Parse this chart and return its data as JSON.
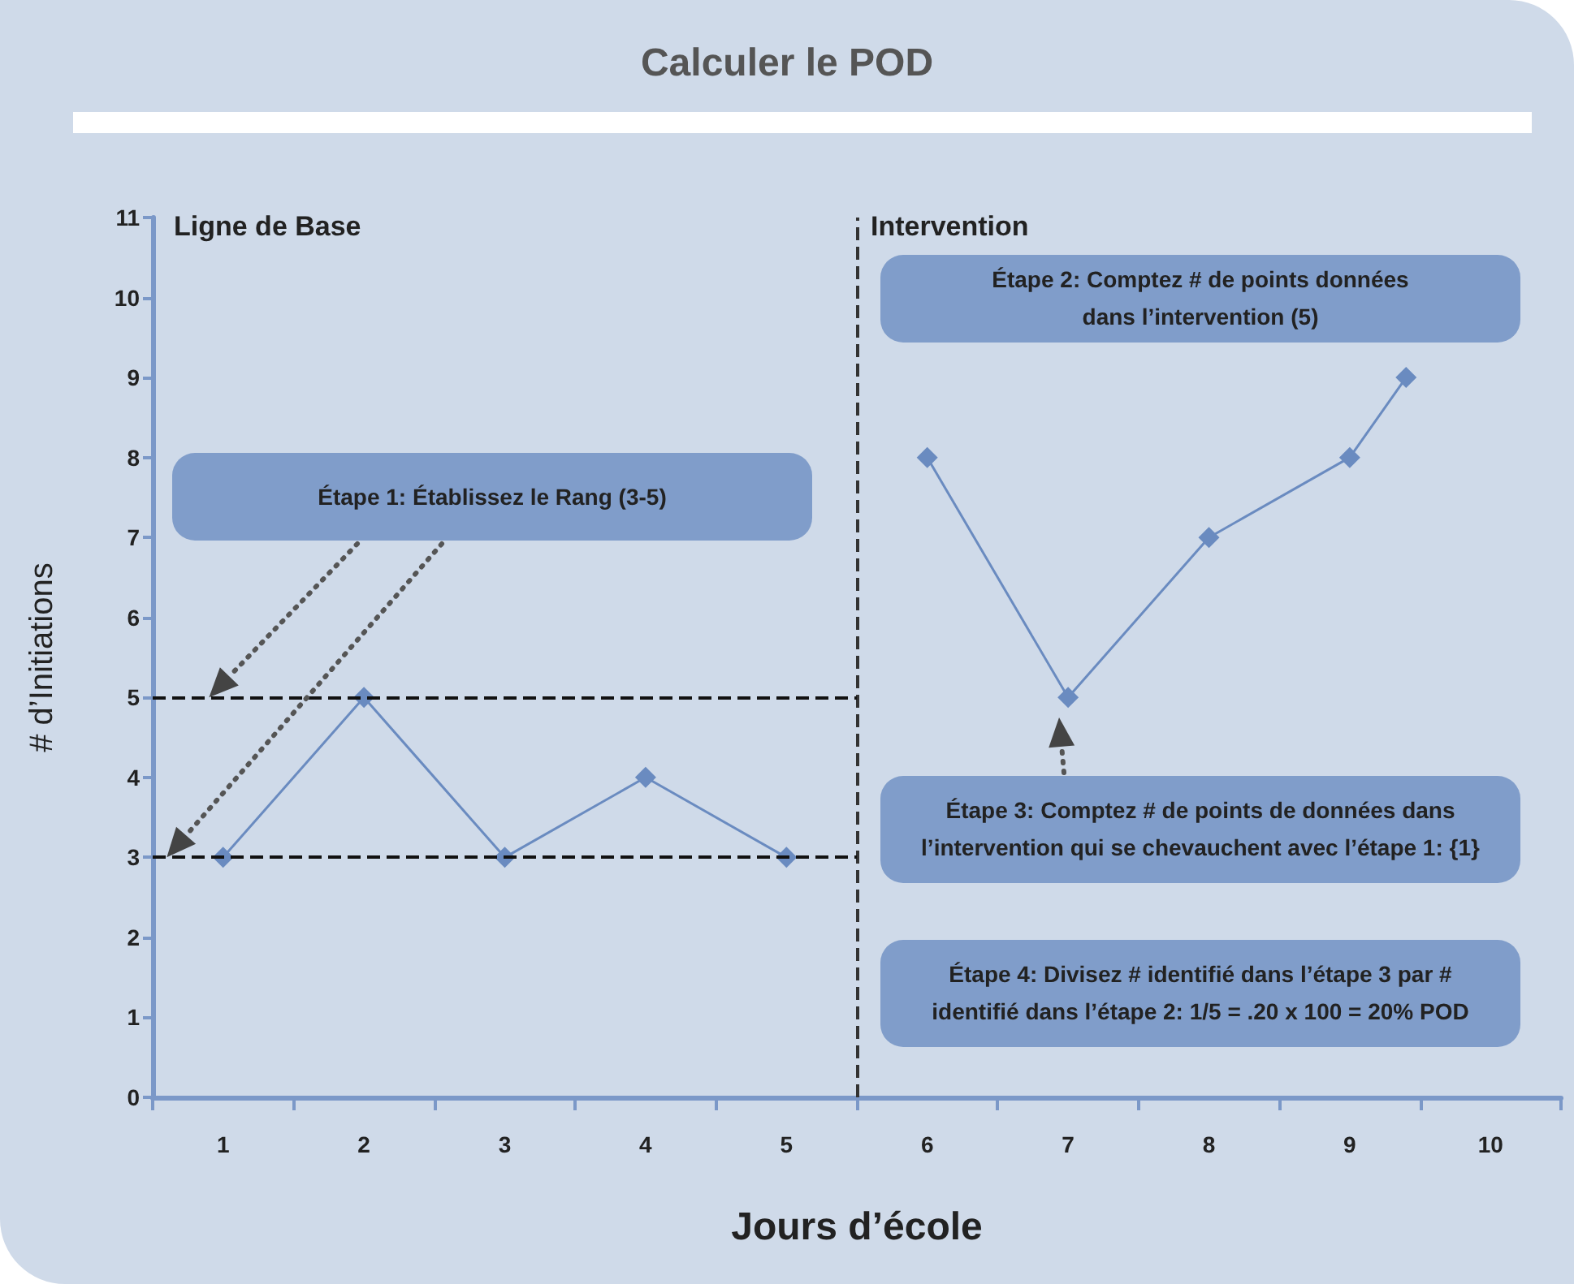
{
  "chart_data": {
    "type": "line",
    "title": "Calculer le POD",
    "xlabel": "Jours d’école",
    "ylabel": "# d’Initiations",
    "series": [
      {
        "color": "#6a8bc0",
        "x": [
          1,
          2,
          3,
          4,
          5
        ],
        "values": [
          3,
          5,
          3,
          4,
          3
        ]
      },
      {
        "color": "#6a8bc0",
        "x": [
          6,
          7,
          8,
          9,
          9.4
        ],
        "values": [
          8,
          5,
          7,
          8,
          9
        ]
      }
    ],
    "xlim": [
      0.5,
      10.5
    ],
    "xticks": [
      {
        "value": 0.5,
        "label": null
      },
      1,
      {
        "value": 1.5,
        "label": null
      },
      2,
      {
        "value": 2.5,
        "label": null
      },
      3,
      {
        "value": 3.5,
        "label": null
      },
      4,
      {
        "value": 4.5,
        "label": null
      },
      5,
      {
        "value": 5.5,
        "label": null
      },
      6,
      {
        "value": 6.5,
        "label": null
      },
      7,
      {
        "value": 7.5,
        "label": null
      },
      8,
      {
        "value": 8.5,
        "label": null
      },
      9,
      {
        "value": 9.5,
        "label": null
      },
      10,
      {
        "value": 10.5,
        "label": null
      }
    ],
    "ylim": [
      0,
      11
    ],
    "yticks": [
      0,
      1,
      2,
      3,
      4,
      5,
      6,
      7,
      8,
      9,
      10,
      11
    ],
    "ref_lines": [
      {
        "axis": "x",
        "value": 5.5,
        "color": "#333333",
        "line_style": "dashed"
      },
      {
        "axis": "y",
        "value": 5,
        "color": "#111111",
        "line_style": "dashed"
      },
      {
        "axis": "y",
        "value": 3,
        "color": "#111111",
        "line_style": "dashed"
      }
    ],
    "annotations": [
      "Ligne de Base",
      "Intervention",
      "Étape 1: Établissez le Rang (3-5)",
      "Étape 2: Comptez # de points données dans l’intervention (5)",
      "Étape 3: Comptez # de points de données dans l’intervention qui se chevauchent avec l’étape 1: {1}",
      "Étape 4: Divisez # identifié dans l’étape 3 par # identifié dans l’étape 2: 1/5 = .20 x 100 = 20% POD"
    ],
    "marker": "diamond",
    "line_style": "solid"
  }
}
